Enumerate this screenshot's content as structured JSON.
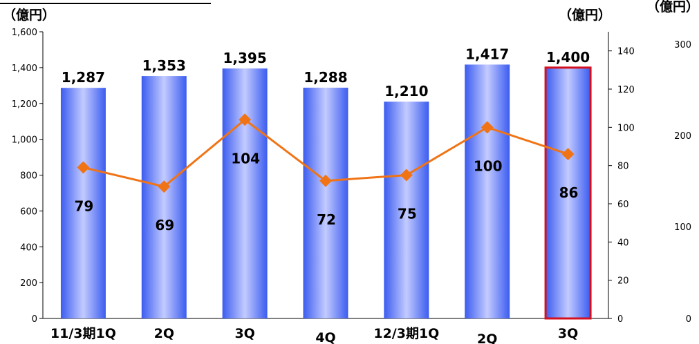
{
  "chart_data": {
    "type": "bar",
    "categories": [
      "11/3期1Q",
      "2Q",
      "3Q",
      "4Q",
      "12/3期1Q",
      "2Q",
      "3Q"
    ],
    "series": [
      {
        "values": [
          1287,
          1353,
          1395,
          1288,
          1210,
          1417,
          1400
        ],
        "axis": "left"
      },
      {
        "type": "line",
        "values": [
          79,
          69,
          104,
          72,
          75,
          100,
          86
        ],
        "axis": "right"
      }
    ],
    "left_axis": {
      "unit_label": "（億円）",
      "min": 0,
      "max": 1600,
      "step": 200,
      "tick_labels": [
        "0",
        "200",
        "400",
        "600",
        "800",
        "1,000",
        "1,200",
        "1,400",
        "1,600"
      ]
    },
    "right_axis": {
      "unit_label": "（億円）",
      "min": 0,
      "max": 150,
      "ticks": [
        0,
        20,
        40,
        60,
        80,
        100,
        120,
        140
      ]
    },
    "far_right_axis": {
      "unit_label": "（億円）",
      "ticks": [
        "0",
        "100",
        "200",
        "300"
      ]
    },
    "bar_value_labels": [
      "1,287",
      "1,353",
      "1,395",
      "1,288",
      "1,210",
      "1,417",
      "1,400"
    ],
    "highlighted_index": 6,
    "colors": {
      "bar_dark": "#3b5cf0",
      "bar_light": "#c3cbff",
      "line": "#f07416",
      "highlight": "#d4101e"
    },
    "grid": false,
    "legend": "none"
  }
}
